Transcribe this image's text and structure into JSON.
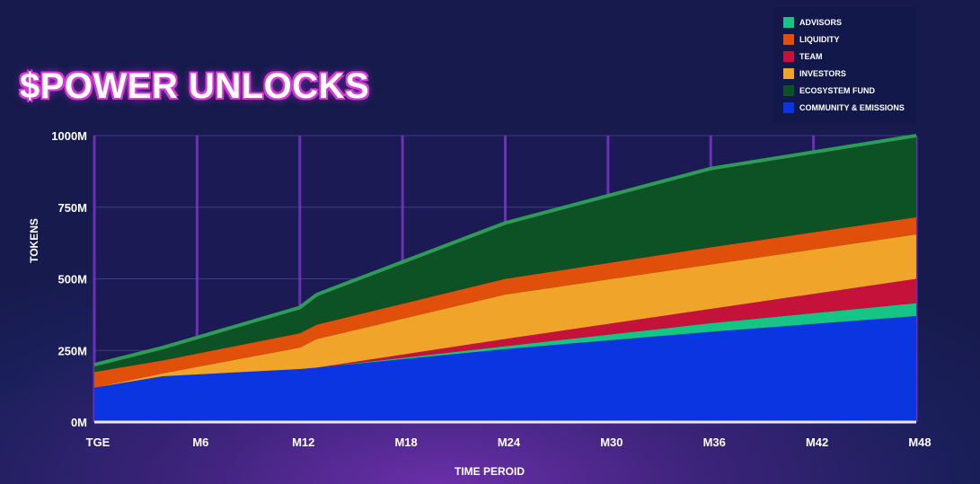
{
  "title": "$POWER UNLOCKS",
  "chart_data": {
    "type": "area",
    "stacked": true,
    "x": [
      "TGE",
      "M4",
      "M12",
      "M13",
      "M24",
      "M36",
      "M48"
    ],
    "xticks": [
      "TGE",
      "M6",
      "M12",
      "M18",
      "M24",
      "M30",
      "M36",
      "M42",
      "M48"
    ],
    "xlabel": "TIME PEROID",
    "ylabel": "TOKENS",
    "yticks": [
      "0M",
      "250M",
      "500M",
      "750M",
      "1000M"
    ],
    "ylim": [
      0,
      1000
    ],
    "grid": true,
    "legend_position": "top-right",
    "series": [
      {
        "name": "COMMUNITY & EMISSIONS",
        "color": "#0a35e0",
        "values": [
          120,
          160,
          185,
          190,
          255,
          315,
          370
        ]
      },
      {
        "name": "ADVISORS",
        "color": "#16c585",
        "values": [
          0,
          0,
          0,
          0,
          10,
          30,
          45
        ]
      },
      {
        "name": "TEAM",
        "color": "#c4123a",
        "values": [
          0,
          0,
          0,
          0,
          25,
          50,
          85
        ]
      },
      {
        "name": "INVESTORS",
        "color": "#f0a429",
        "values": [
          0,
          10,
          75,
          100,
          155,
          155,
          155
        ]
      },
      {
        "name": "LIQUIDITY",
        "color": "#e0500a",
        "values": [
          55,
          45,
          50,
          50,
          55,
          60,
          60
        ]
      },
      {
        "name": "ECOSYSTEM FUND",
        "color": "#0d5224",
        "values": [
          25,
          45,
          90,
          105,
          195,
          275,
          285
        ]
      }
    ],
    "legend_order": [
      "ADVISORS",
      "LIQUIDITY",
      "TEAM",
      "INVESTORS",
      "ECOSYSTEM FUND",
      "COMMUNITY & EMISSIONS"
    ]
  }
}
